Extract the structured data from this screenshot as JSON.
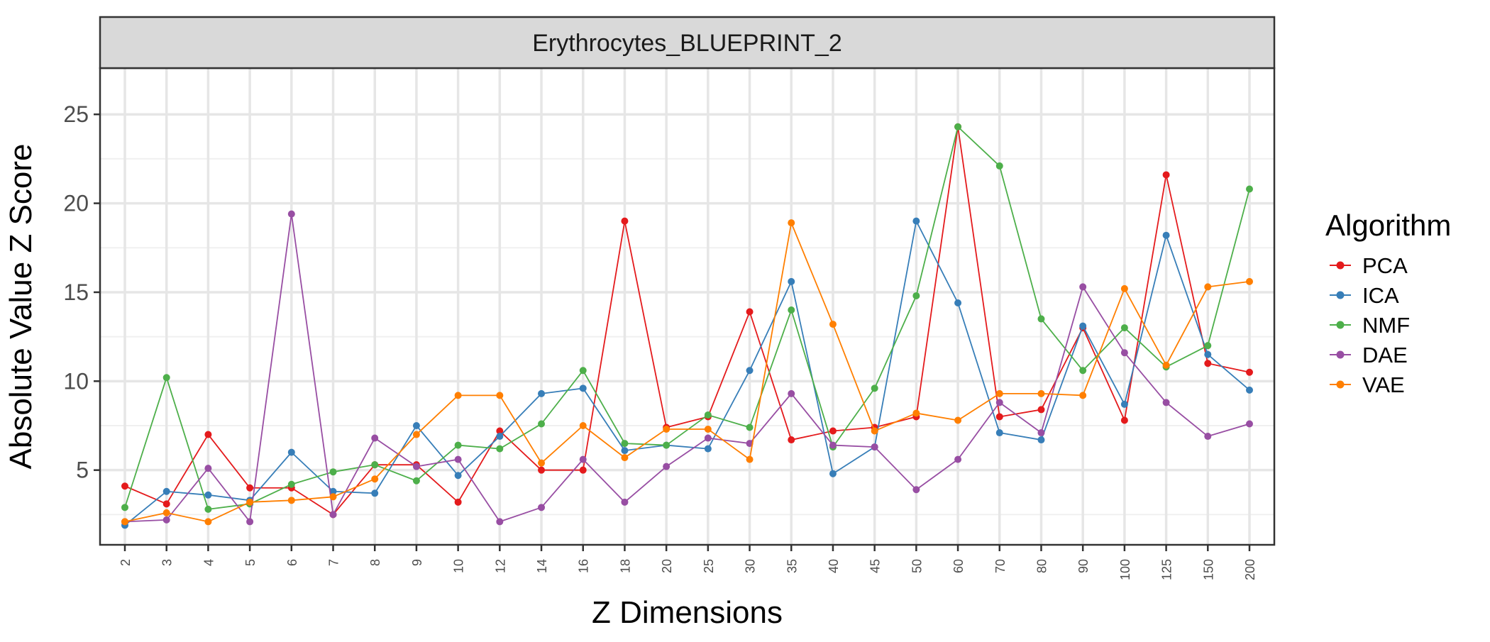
{
  "chart_data": {
    "type": "line",
    "title": "Erythrocytes_BLUEPRINT_2",
    "xlabel": "Z Dimensions",
    "ylabel": "Absolute Value Z Score",
    "ylim": [
      0.8,
      27.6
    ],
    "yticks": [
      5,
      10,
      15,
      20,
      25
    ],
    "grid": true,
    "legend_title": "Algorithm",
    "legend_position": "right",
    "categories": [
      "2",
      "3",
      "4",
      "5",
      "6",
      "7",
      "8",
      "9",
      "10",
      "12",
      "14",
      "16",
      "18",
      "20",
      "25",
      "30",
      "35",
      "40",
      "45",
      "50",
      "60",
      "70",
      "80",
      "90",
      "100",
      "125",
      "150",
      "200"
    ],
    "series": [
      {
        "name": "PCA",
        "color": "#e41a1c",
        "values": [
          4.1,
          3.1,
          7.0,
          4.0,
          4.0,
          2.5,
          5.3,
          5.3,
          3.2,
          7.2,
          5.0,
          5.0,
          19.0,
          7.4,
          8.0,
          13.9,
          6.7,
          7.2,
          7.4,
          8.0,
          24.3,
          8.0,
          8.4,
          13.0,
          7.8,
          21.6,
          11.0,
          10.5
        ]
      },
      {
        "name": "ICA",
        "color": "#377eb8",
        "values": [
          1.9,
          3.8,
          3.6,
          3.3,
          6.0,
          3.8,
          3.7,
          7.5,
          4.7,
          6.9,
          9.3,
          9.6,
          6.1,
          6.4,
          6.2,
          10.6,
          15.6,
          4.8,
          6.3,
          19.0,
          14.4,
          7.1,
          6.7,
          13.1,
          8.7,
          18.2,
          11.5,
          9.5
        ]
      },
      {
        "name": "NMF",
        "color": "#4daf4a",
        "values": [
          2.9,
          10.2,
          2.8,
          3.1,
          4.2,
          4.9,
          5.3,
          4.4,
          6.4,
          6.2,
          7.6,
          10.6,
          6.5,
          6.4,
          8.1,
          7.4,
          14.0,
          6.3,
          9.6,
          14.8,
          24.3,
          22.1,
          13.5,
          10.6,
          13.0,
          10.8,
          12.0,
          20.8
        ]
      },
      {
        "name": "DAE",
        "color": "#984ea3",
        "values": [
          2.1,
          2.2,
          5.1,
          2.1,
          19.4,
          2.5,
          6.8,
          5.2,
          5.6,
          2.1,
          2.9,
          5.6,
          3.2,
          5.2,
          6.8,
          6.5,
          9.3,
          6.4,
          6.3,
          3.9,
          5.6,
          8.8,
          7.1,
          15.3,
          11.6,
          8.8,
          6.9,
          7.6
        ]
      },
      {
        "name": "VAE",
        "color": "#ff7f00",
        "values": [
          2.1,
          2.6,
          2.1,
          3.2,
          3.3,
          3.5,
          4.5,
          7.0,
          9.2,
          9.2,
          5.4,
          7.5,
          5.7,
          7.3,
          7.3,
          5.6,
          18.9,
          13.2,
          7.2,
          8.2,
          7.8,
          9.3,
          9.3,
          9.2,
          15.2,
          10.9,
          15.3,
          15.6
        ]
      }
    ]
  }
}
